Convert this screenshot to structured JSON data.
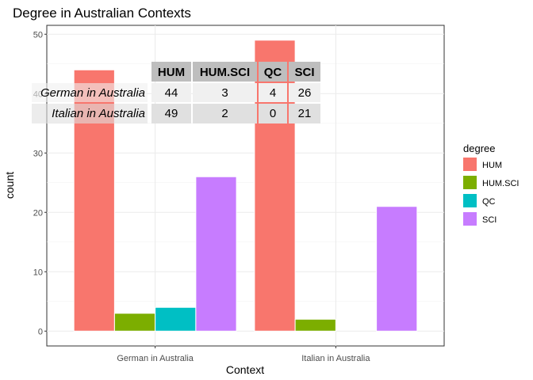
{
  "chart_data": {
    "type": "bar",
    "title": "Degree in Australian Contexts",
    "xlabel": "Context",
    "ylabel": "count",
    "categories": [
      "German in Australia",
      "Italian in Australia"
    ],
    "series": [
      {
        "name": "HUM",
        "values": [
          44,
          49
        ],
        "color": "#F8766D"
      },
      {
        "name": "HUM.SCI",
        "values": [
          3,
          2
        ],
        "color": "#7CAE00"
      },
      {
        "name": "QC",
        "values": [
          4,
          0
        ],
        "color": "#00BFC4"
      },
      {
        "name": "SCI",
        "values": [
          26,
          21
        ],
        "color": "#C77CFF"
      }
    ],
    "ylim": [
      -2.5,
      51.5
    ],
    "yticks": [
      0,
      10,
      20,
      30,
      40,
      50
    ],
    "grid": true,
    "legend": {
      "title": "degree",
      "placement": "right"
    },
    "table": {
      "headers": [
        "HUM",
        "HUM.SCI",
        "QC",
        "SCI"
      ],
      "rows": [
        {
          "name": "German in Australia",
          "values": [
            "44",
            "3",
            "4",
            "26"
          ]
        },
        {
          "name": "Italian in Australia",
          "values": [
            "49",
            "2",
            "0",
            "21"
          ]
        }
      ]
    }
  }
}
